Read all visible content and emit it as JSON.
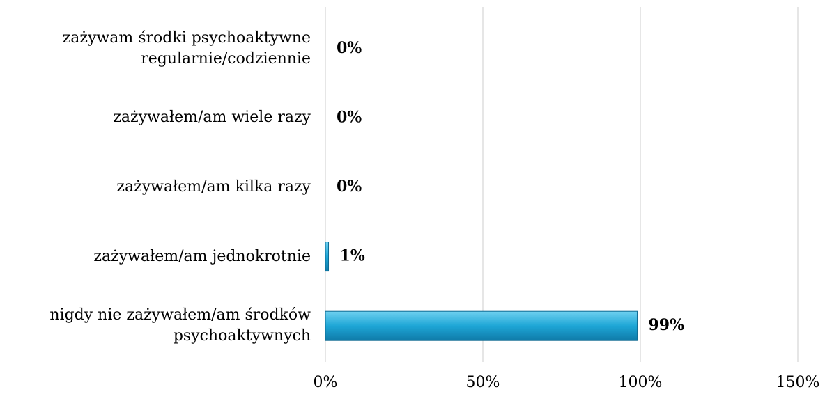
{
  "chart_data": {
    "type": "bar",
    "orientation": "horizontal",
    "categories": [
      "zażywam środki psychoaktywne regularnie/codziennie",
      "zażywałem/am wiele razy",
      "zażywałem/am kilka razy",
      "zażywałem/am jednokrotnie",
      "nigdy nie zażywałem/am środków psychoaktywnych"
    ],
    "values": [
      0,
      0,
      0,
      1,
      99
    ],
    "value_labels": [
      "0%",
      "0%",
      "0%",
      "1%",
      "99%"
    ],
    "color": "#1ea6d6",
    "xlim": [
      0,
      150
    ],
    "xticks": [
      {
        "value": 0,
        "label": "0%"
      },
      {
        "value": 50,
        "label": "50%"
      },
      {
        "value": 100,
        "label": "100%"
      },
      {
        "value": 150,
        "label": "150%"
      }
    ],
    "grid": true
  }
}
